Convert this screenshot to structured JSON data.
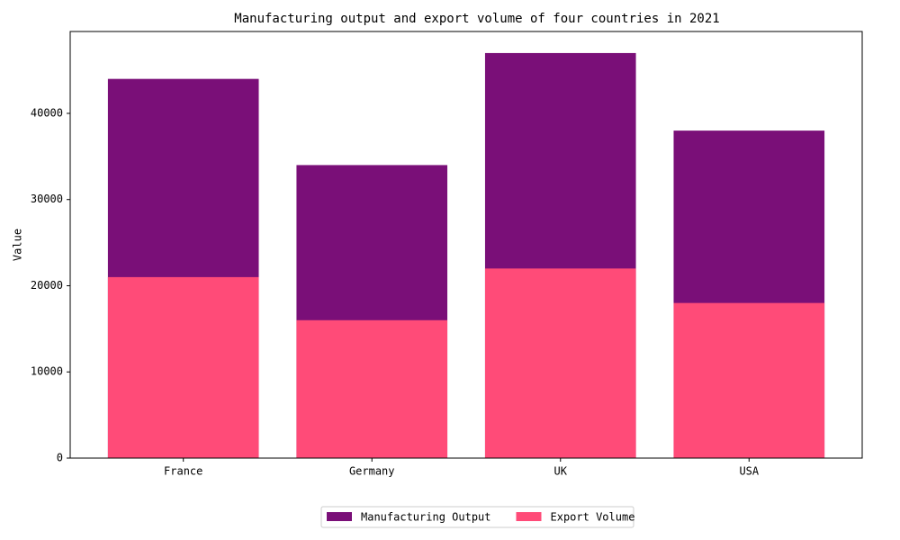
{
  "chart_data": {
    "type": "bar",
    "title": "Manufacturing output and export volume of four countries in 2021",
    "y_label": "Value",
    "categories": [
      "France",
      "Germany",
      "UK",
      "USA"
    ],
    "series": [
      {
        "name": "Manufacturing Output",
        "color": "#7a0f78",
        "values": [
          44000,
          34000,
          47000,
          38000
        ]
      },
      {
        "name": "Export Volume",
        "color": "#ff4b78",
        "values": [
          21000,
          16000,
          22000,
          18000
        ]
      }
    ],
    "ylim": [
      0,
      49500
    ],
    "yticks": [
      0,
      10000,
      20000,
      30000,
      40000
    ],
    "legend": "bottom"
  }
}
